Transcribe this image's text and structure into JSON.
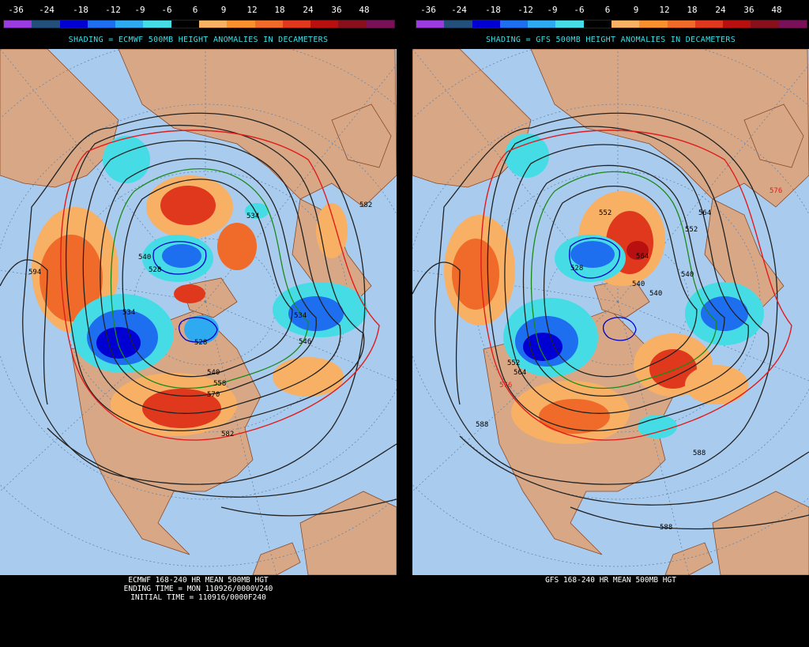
{
  "legend": {
    "values": [
      "-36",
      "-24",
      "-18",
      "-12",
      "-9",
      "-6",
      "6",
      "9",
      "12",
      "18",
      "24",
      "36",
      "48"
    ],
    "colors": [
      "#9a3ce0",
      "#23507a",
      "#0000d2",
      "#1e6ef0",
      "#2eaaf0",
      "#46dce6",
      "#000000",
      "#f8b064",
      "#f89030",
      "#f06a2a",
      "#e0381c",
      "#b81010",
      "#88101a",
      "#7a1058"
    ]
  },
  "left": {
    "shading_title": "SHADING = ECMWF 500MB HEIGHT ANOMALIES IN DECAMETERS",
    "caption_lines": [
      "ECMWF 168-240 HR MEAN 500MB HGT",
      "ENDING TIME = MON 110926/0000V240",
      "INITIAL TIME = 110916/0000F240"
    ],
    "contour_labels": [
      "594",
      "534",
      "528",
      "534",
      "546",
      "540",
      "558",
      "570",
      "582",
      "582",
      "540",
      "534",
      "528"
    ]
  },
  "right": {
    "shading_title": "SHADING = GFS 500MB HEIGHT ANOMALIES IN DECAMETERS",
    "caption_lines": [
      "GFS 168-240 HR MEAN 500MB HGT"
    ],
    "contour_labels": [
      "576",
      "564",
      "552",
      "552",
      "564",
      "528",
      "540",
      "540",
      "540",
      "552",
      "564",
      "576",
      "588",
      "588",
      "588"
    ]
  }
}
